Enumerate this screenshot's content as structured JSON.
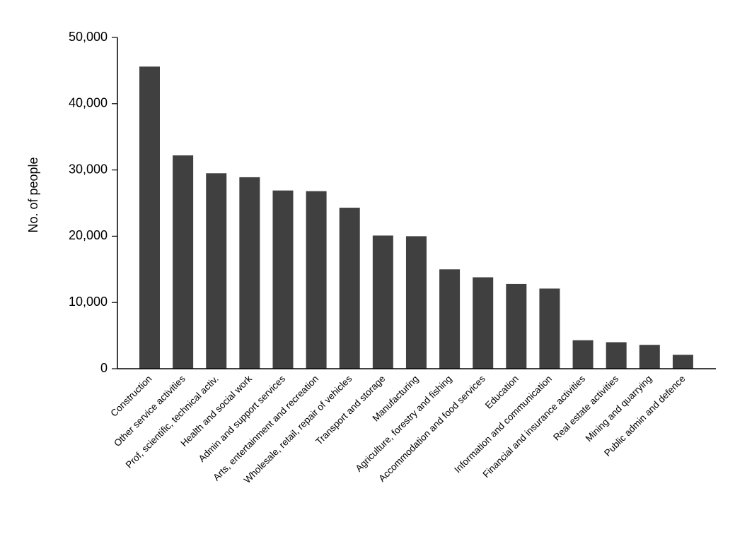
{
  "chart_data": {
    "type": "bar",
    "title": "",
    "xlabel": "",
    "ylabel": "No. of people",
    "ylim": [
      0,
      50000
    ],
    "yticks": [
      0,
      10000,
      20000,
      30000,
      40000,
      50000
    ],
    "ytick_labels": [
      "0",
      "10,000",
      "20,000",
      "30,000",
      "40,000",
      "50,000"
    ],
    "grid": false,
    "legend": "none",
    "bar_color": "#404040",
    "categories": [
      "Construction",
      "Other service activities",
      "Prof, scientific, technical activ.",
      "Health and social work",
      "Admin and support services",
      "Arts, entertainment and recreation",
      "Wholesale, retail, repair of vehicles",
      "Transport and storage",
      "Manufacturing",
      "Agriculture, forestry and fishing",
      "Accommodation and food services",
      "Education",
      "Information and communication",
      "Financial and insurance activities",
      "Real estate activities",
      "Mining and quarrying",
      "Public admin and defence"
    ],
    "values": [
      45600,
      32200,
      29500,
      28900,
      26900,
      26800,
      24300,
      20100,
      20000,
      15000,
      13800,
      12800,
      12100,
      4300,
      4000,
      3600,
      2100
    ]
  }
}
